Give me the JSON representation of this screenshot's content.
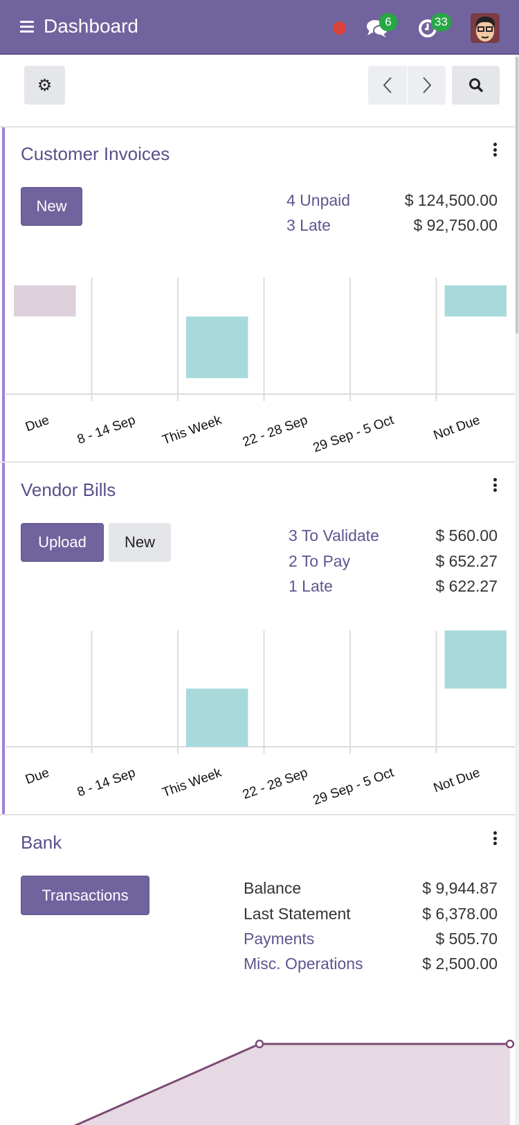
{
  "header": {
    "title": "Dashboard",
    "messages_count": "6",
    "activities_count": "33",
    "status_color": "#d9423a",
    "icons": [
      "menu-icon",
      "chat-icon",
      "clock-icon",
      "avatar"
    ]
  },
  "control_panel": {
    "icons": [
      "gear-icon",
      "chevron-left-icon",
      "chevron-right-icon",
      "search-icon"
    ]
  },
  "colors": {
    "brand": "#71639e",
    "bar_current": "#a8dadb",
    "bar_past": "#ddd0da",
    "line": "#7c4a74",
    "area": "#e6d9e3"
  },
  "customer_invoices": {
    "title": "Customer Invoices",
    "new_label": "New",
    "stats": [
      {
        "label": "4 Unpaid",
        "amount": "$ 124,500.00"
      },
      {
        "label": "3 Late",
        "amount": "$ 92,750.00"
      }
    ]
  },
  "vendor_bills": {
    "title": "Vendor Bills",
    "upload_label": "Upload",
    "new_label": "New",
    "stats": [
      {
        "label": "3 To Validate",
        "amount": "$ 560.00"
      },
      {
        "label": "2 To Pay",
        "amount": "$ 652.27"
      },
      {
        "label": "1 Late",
        "amount": "$ 622.27"
      }
    ]
  },
  "bank": {
    "title": "Bank",
    "transactions_label": "Transactions",
    "stats": [
      {
        "label": "Balance",
        "amount": "$ 9,944.87"
      },
      {
        "label": "Last Statement",
        "amount": "$ 6,378.00"
      },
      {
        "label": "Payments",
        "amount": "$ 505.70"
      },
      {
        "label": "Misc. Operations",
        "amount": "$ 2,500.00"
      }
    ]
  },
  "chart_data": [
    {
      "type": "bar",
      "categories": [
        "Due",
        "8 - 14 Sep",
        "This Week",
        "22 - 28 Sep",
        "29 Sep - 5 Oct",
        "Not Due"
      ],
      "ylim": [
        0,
        4
      ],
      "grid": true,
      "bars": [
        {
          "category": "Due",
          "range": [
            2.67,
            3.74
          ],
          "color": "#ddd0da"
        },
        {
          "category": "This Week",
          "range": [
            0.55,
            2.67
          ],
          "color": "#a8dadb"
        },
        {
          "category": "Not Due",
          "range": [
            2.67,
            3.74
          ],
          "color": "#a8dadb"
        }
      ]
    },
    {
      "type": "bar",
      "categories": [
        "Due",
        "8 - 14 Sep",
        "This Week",
        "22 - 28 Sep",
        "29 Sep - 5 Oct",
        "Not Due"
      ],
      "ylim": [
        0,
        4
      ],
      "grid": true,
      "bars": [
        {
          "category": "This Week",
          "range": [
            0,
            2
          ],
          "color": "#a8dadb"
        },
        {
          "category": "Not Due",
          "range": [
            2,
            4
          ],
          "color": "#a8dadb"
        }
      ]
    },
    {
      "type": "area",
      "x": [
        0,
        1,
        2
      ],
      "values": [
        0,
        1,
        1
      ]
    }
  ]
}
